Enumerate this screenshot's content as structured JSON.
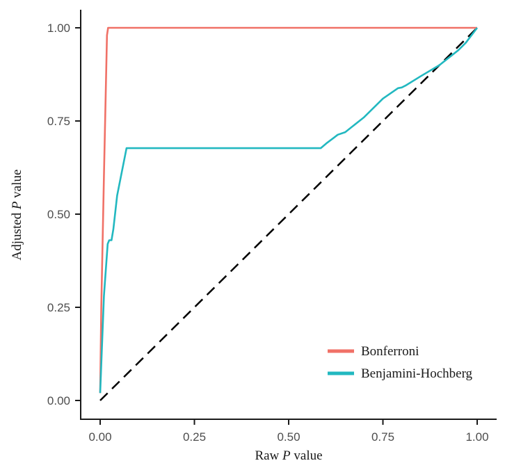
{
  "chart_data": {
    "type": "line",
    "xlabel": {
      "prefix": "Raw ",
      "italic": "P",
      "suffix": " value"
    },
    "ylabel": {
      "prefix": "Adjusted ",
      "italic": "P",
      "suffix": " value"
    },
    "xlim": [
      0,
      1
    ],
    "ylim": [
      0,
      1
    ],
    "xticks": [
      0,
      0.25,
      0.5,
      0.75,
      1
    ],
    "xtick_labels": [
      "0.00",
      "0.25",
      "0.50",
      "0.75",
      "1.00"
    ],
    "yticks": [
      0,
      0.25,
      0.5,
      0.75,
      1
    ],
    "ytick_labels": [
      "0.00",
      "0.25",
      "0.50",
      "0.75",
      "1.00"
    ],
    "grid": false,
    "legend_position": "bottom-right",
    "series": [
      {
        "name": "Bonferroni",
        "color": "#f07167",
        "x": [
          0.0,
          0.003,
          0.01,
          0.018,
          0.021,
          0.5,
          1.0
        ],
        "y": [
          0.02,
          0.25,
          0.6,
          0.98,
          1.0,
          1.0,
          1.0
        ]
      },
      {
        "name": "Benjamini-Hochberg",
        "color": "#22b8c0",
        "x": [
          0.0,
          0.01,
          0.02,
          0.024,
          0.03,
          0.035,
          0.045,
          0.07,
          0.1,
          0.3,
          0.5,
          0.585,
          0.6,
          0.62,
          0.63,
          0.65,
          0.7,
          0.75,
          0.79,
          0.8,
          0.81,
          0.85,
          0.9,
          0.95,
          0.97,
          1.0
        ],
        "y": [
          0.02,
          0.28,
          0.42,
          0.43,
          0.43,
          0.46,
          0.55,
          0.677,
          0.677,
          0.677,
          0.677,
          0.677,
          0.69,
          0.705,
          0.713,
          0.72,
          0.76,
          0.81,
          0.838,
          0.84,
          0.845,
          0.87,
          0.9,
          0.94,
          0.96,
          1.0
        ]
      },
      {
        "name": "",
        "color": "#000000",
        "dashed": true,
        "x": [
          0,
          1
        ],
        "y": [
          0,
          1
        ]
      }
    ]
  }
}
